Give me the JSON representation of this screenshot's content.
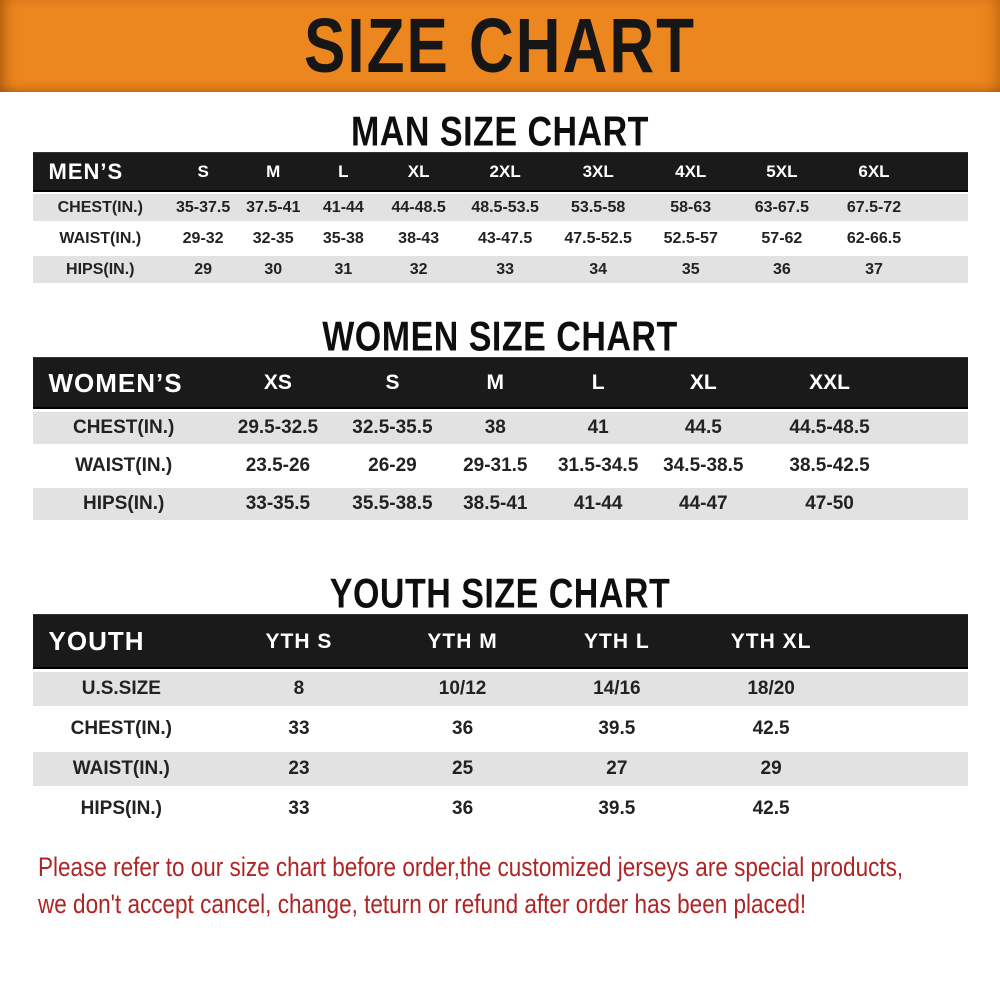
{
  "banner": {
    "title": "SIZE CHART"
  },
  "colors": {
    "banner_bg": "#EC861E",
    "table_header_bg": "#1A1A1A",
    "stripe_bg": "#E2E2E2",
    "heading_text": "#0E0E0E",
    "footer_text": "#AF2525"
  },
  "sections": [
    {
      "id": "men",
      "heading": "MAN SIZE CHART",
      "header_label": "MEN’S",
      "columns": [
        "S",
        "M",
        "L",
        "XL",
        "2XL",
        "3XL",
        "4XL",
        "5XL",
        "6XL"
      ],
      "rows": [
        {
          "label": "CHEST(IN.)",
          "values": [
            "35-37.5",
            "37.5-41",
            "41-44",
            "44-48.5",
            "48.5-53.5",
            "53.5-58",
            "58-63",
            "63-67.5",
            "67.5-72"
          ]
        },
        {
          "label": "WAIST(IN.)",
          "values": [
            "29-32",
            "32-35",
            "35-38",
            "38-43",
            "43-47.5",
            "47.5-52.5",
            "52.5-57",
            "57-62",
            "62-66.5"
          ]
        },
        {
          "label": "HIPS(IN.)",
          "values": [
            "29",
            "30",
            "31",
            "32",
            "33",
            "34",
            "35",
            "36",
            "37"
          ]
        }
      ]
    },
    {
      "id": "women",
      "heading": "WOMEN SIZE CHART",
      "header_label": "WOMEN’S",
      "columns": [
        "XS",
        "S",
        "M",
        "L",
        "XL",
        "XXL"
      ],
      "rows": [
        {
          "label": "CHEST(IN.)",
          "values": [
            "29.5-32.5",
            "32.5-35.5",
            "38",
            "41",
            "44.5",
            "44.5-48.5"
          ]
        },
        {
          "label": "WAIST(IN.)",
          "values": [
            "23.5-26",
            "26-29",
            "29-31.5",
            "31.5-34.5",
            "34.5-38.5",
            "38.5-42.5"
          ]
        },
        {
          "label": "HIPS(IN.)",
          "values": [
            "33-35.5",
            "35.5-38.5",
            "38.5-41",
            "41-44",
            "44-47",
            "47-50"
          ]
        }
      ]
    },
    {
      "id": "youth",
      "heading": "YOUTH SIZE CHART",
      "header_label": "YOUTH",
      "columns": [
        "YTH S",
        "YTH M",
        "YTH L",
        "YTH XL"
      ],
      "rows": [
        {
          "label": "U.S.SIZE",
          "values": [
            "8",
            "10/12",
            "14/16",
            "18/20"
          ]
        },
        {
          "label": "CHEST(IN.)",
          "values": [
            "33",
            "36",
            "39.5",
            "42.5"
          ]
        },
        {
          "label": "WAIST(IN.)",
          "values": [
            "23",
            "25",
            "27",
            "29"
          ]
        },
        {
          "label": "HIPS(IN.)",
          "values": [
            "33",
            "36",
            "39.5",
            "42.5"
          ]
        }
      ]
    }
  ],
  "footer": {
    "line1": "Please refer to our size chart before order,the customized jerseys are special products,",
    "line2": "we don't accept cancel, change, teturn or refund after order has been placed!"
  }
}
